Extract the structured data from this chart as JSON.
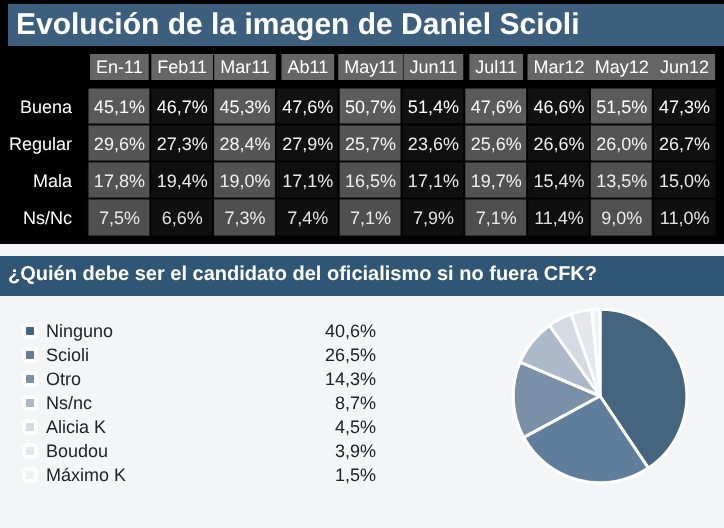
{
  "chart_data": [
    {
      "type": "heatmap",
      "title": "Evolución de la imagen de Daniel Scioli",
      "categories": [
        "En-11",
        "Feb11",
        "Mar11",
        "Ab11",
        "May11",
        "Jun11",
        "Jul11",
        "Mar12",
        "May12",
        "Jun12"
      ],
      "y_categories": [
        "Buena",
        "Regular",
        "Mala",
        "Ns/Nc"
      ],
      "colors": [
        "#5b5b5b",
        "#111111",
        "#5b5b5b",
        "#111111",
        "#5b5b5b",
        "#111111",
        "#5b5b5b",
        "#111111",
        "#5b5b5b",
        "#111111"
      ],
      "cells": [
        [
          45.1,
          46.7,
          45.3,
          47.6,
          50.7,
          51.4,
          47.6,
          46.6,
          51.5,
          47.3
        ],
        [
          29.6,
          27.3,
          28.4,
          27.9,
          25.7,
          23.6,
          25.6,
          26.6,
          26.0,
          26.7
        ],
        [
          17.8,
          19.4,
          19.0,
          17.1,
          16.5,
          17.1,
          19.7,
          15.4,
          13.5,
          15.0
        ],
        [
          7.5,
          6.6,
          7.3,
          7.4,
          7.1,
          7.9,
          7.1,
          11.4,
          9.0,
          11.0
        ]
      ],
      "cell_labels": [
        [
          "45,1%",
          "46,7%",
          "45,3%",
          "47,6%",
          "50,7%",
          "51,4%",
          "47,6%",
          "46,6%",
          "51,5%",
          "47,3%"
        ],
        [
          "29,6%",
          "27,3%",
          "28,4%",
          "27,9%",
          "25,7%",
          "23,6%",
          "25,6%",
          "26,6%",
          "26,0%",
          "26,7%"
        ],
        [
          "17,8%",
          "19,4%",
          "19,0%",
          "17,1%",
          "16,5%",
          "17,1%",
          "19,7%",
          "15,4%",
          "13,5%",
          "15,0%"
        ],
        [
          "7,5%",
          "6,6%",
          "7,3%",
          "7,4%",
          "7,1%",
          "7,9%",
          "7,1%",
          "11,4%",
          "9,0%",
          "11,0%"
        ]
      ]
    },
    {
      "type": "pie",
      "title": "¿Quién debe ser el candidato del oficialismo si no fuera CFK?",
      "categories": [
        "Ninguno",
        "Scioli",
        "Otro",
        "Ns/nc",
        "Alicia K",
        "Boudou",
        "Máximo K"
      ],
      "values": [
        40.6,
        26.5,
        14.3,
        8.7,
        4.5,
        3.9,
        1.5
      ],
      "value_labels": [
        "40,6%",
        "26,5%",
        "14,3%",
        "8,7%",
        "4,5%",
        "3,9%",
        "1,5%"
      ],
      "colors": [
        "#45657f",
        "#5f7e9b",
        "#7990a8",
        "#acb9c8",
        "#d5dbe2",
        "#e4e8ed",
        "#eff1f4"
      ],
      "legend": "left"
    }
  ]
}
